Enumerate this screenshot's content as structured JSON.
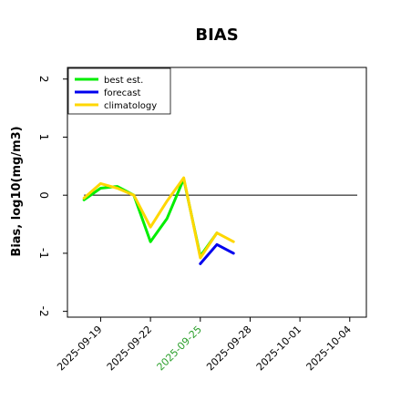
{
  "chart_data": {
    "type": "line",
    "title": "BIAS",
    "xlabel": "",
    "ylabel": "Bias, log10(mg/m3)",
    "x_ticks": [
      "2025-09-19",
      "2025-09-22",
      "2025-09-25",
      "2025-09-28",
      "2025-10-01",
      "2025-10-04"
    ],
    "x_tick_colors": [
      "#000000",
      "#000000",
      "#2ca02c",
      "#000000",
      "#000000",
      "#000000"
    ],
    "x_range": [
      "2025-09-17",
      "2025-10-05"
    ],
    "ylim": [
      -2.1,
      2.2
    ],
    "y_ticks": [
      -2,
      -1,
      0,
      1,
      2
    ],
    "grid": false,
    "zero_line": true,
    "legend_position": "top-left",
    "series": [
      {
        "name": "best est.",
        "color": "#00ee00",
        "x": [
          "2025-09-18",
          "2025-09-19",
          "2025-09-20",
          "2025-09-21",
          "2025-09-22",
          "2025-09-23",
          "2025-09-24",
          "2025-09-25",
          "2025-09-26"
        ],
        "values": [
          -0.08,
          0.12,
          0.15,
          0.0,
          -0.8,
          -0.4,
          0.28,
          -1.05,
          -0.65
        ]
      },
      {
        "name": "forecast",
        "color": "#0000ee",
        "x": [
          "2025-09-25",
          "2025-09-26",
          "2025-09-27"
        ],
        "values": [
          -1.18,
          -0.85,
          -1.0
        ]
      },
      {
        "name": "climatology",
        "color": "#ffd700",
        "x": [
          "2025-09-18",
          "2025-09-19",
          "2025-09-20",
          "2025-09-21",
          "2025-09-22",
          "2025-09-23",
          "2025-09-24",
          "2025-09-25",
          "2025-09-26",
          "2025-09-27"
        ],
        "values": [
          -0.05,
          0.2,
          0.12,
          0.0,
          -0.55,
          -0.1,
          0.3,
          -1.08,
          -0.65,
          -0.8
        ]
      }
    ]
  }
}
